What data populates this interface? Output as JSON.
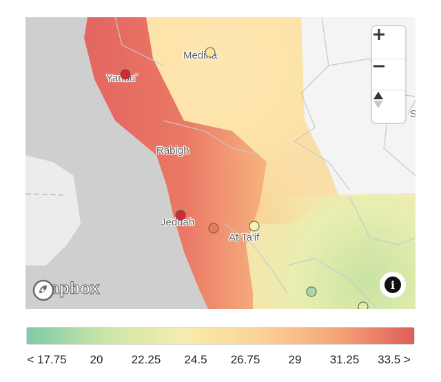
{
  "map": {
    "attribution_logo": "mapbox",
    "city_labels": [
      "Medina",
      "Yanbu`",
      "Rabigh",
      "Jeddah",
      "At Ta'if"
    ],
    "edge_label": "S",
    "markers": [
      {
        "city": "Medina",
        "color": "#fbe39a"
      },
      {
        "city": "Yanbu`",
        "color": "#d8262f"
      },
      {
        "city": "Jeddah",
        "color": "#d8262f"
      },
      {
        "city": "Jeddah",
        "color": "#ee7b4f"
      },
      {
        "city": "At Ta'if",
        "color": "#fbf0b0"
      },
      {
        "city": "",
        "color": "#a8d8a3"
      },
      {
        "city": "",
        "color": "#dfeda6"
      }
    ],
    "controls": {
      "zoom_in": "+",
      "zoom_out": "−",
      "compass": "compass-icon",
      "info": "i"
    }
  },
  "legend": {
    "colors": [
      "#7fcaa8",
      "#c9e6a5",
      "#f6edae",
      "#fbd496",
      "#f6a574",
      "#e15c5c"
    ],
    "ticks": [
      "< 17.75",
      "20",
      "22.25",
      "24.5",
      "26.75",
      "29",
      "31.25",
      "33.5 >"
    ]
  }
}
